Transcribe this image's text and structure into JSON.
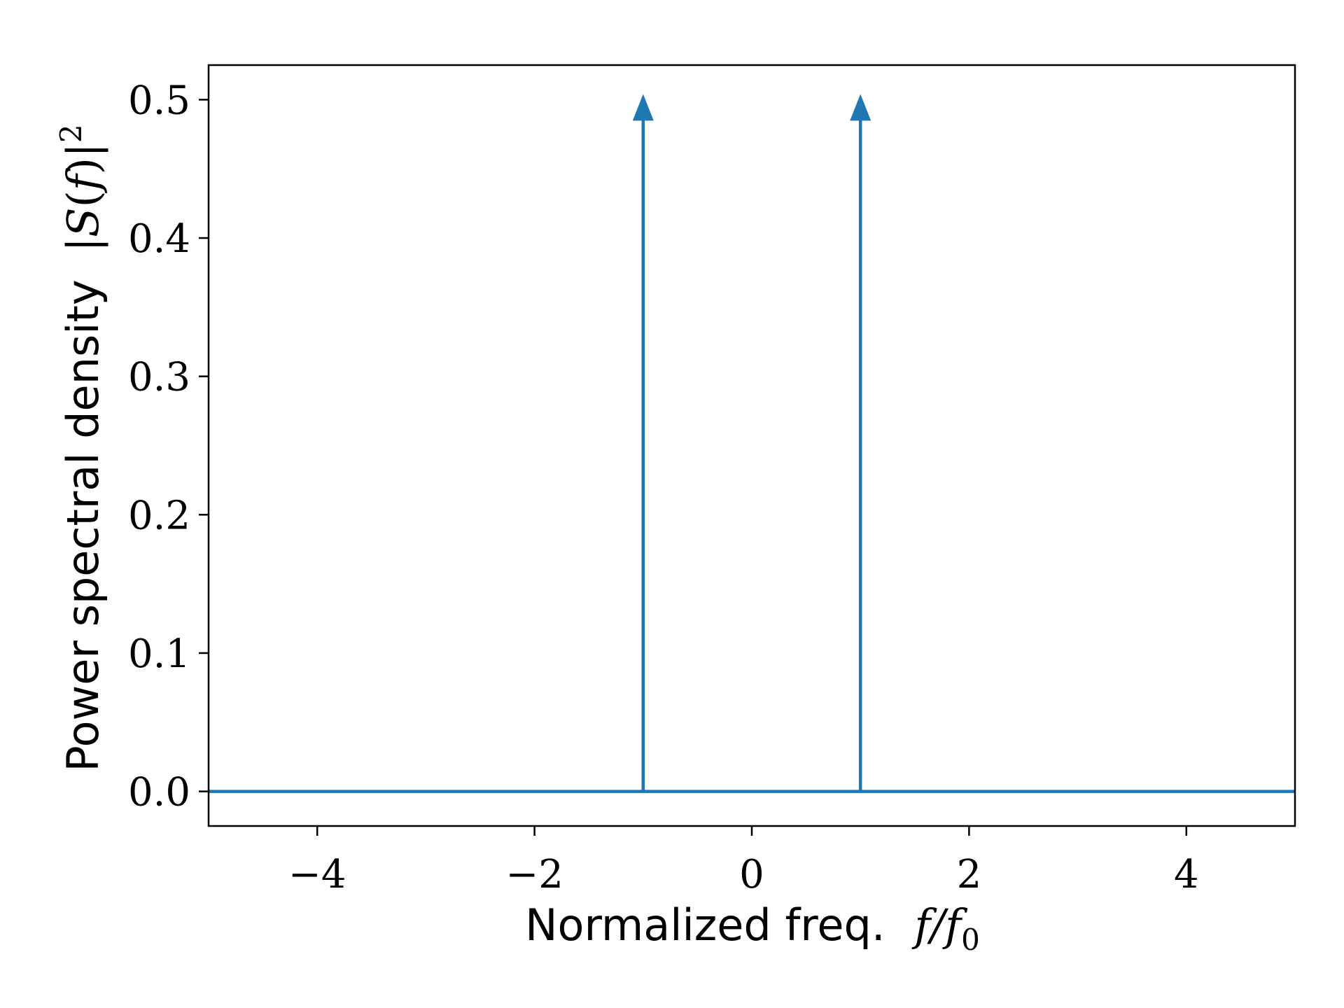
{
  "chart_data": {
    "type": "line",
    "title": "",
    "xlabel_text": "Normalized freq.",
    "xlabel_math": "f/f",
    "xlabel_sub": "0",
    "ylabel_text": "Power spectral density",
    "ylabel_math_pre": "|",
    "ylabel_math_S": "S",
    "ylabel_math_paren_open": "(",
    "ylabel_math_f": "f",
    "ylabel_math_paren_close": ")|",
    "ylabel_sup": "2",
    "xlim": [
      -5.0,
      5.0
    ],
    "ylim": [
      -0.025,
      0.525
    ],
    "xticks": [
      -4,
      -2,
      0,
      2,
      4
    ],
    "xtick_labels": [
      "−4",
      "−2",
      "0",
      "2",
      "4"
    ],
    "yticks": [
      0.0,
      0.1,
      0.2,
      0.3,
      0.4,
      0.5
    ],
    "ytick_labels": [
      "0.0",
      "0.1",
      "0.2",
      "0.3",
      "0.4",
      "0.5"
    ],
    "series": [
      {
        "kind": "baseline",
        "color": "#1f77b4",
        "x": [
          -5.0,
          5.0
        ],
        "y": [
          0.0,
          0.0
        ]
      },
      {
        "kind": "impulses",
        "color": "#1f77b4",
        "x": [
          -1,
          1
        ],
        "y": [
          0.5,
          0.5
        ]
      }
    ],
    "grid": false,
    "legend": "none"
  }
}
